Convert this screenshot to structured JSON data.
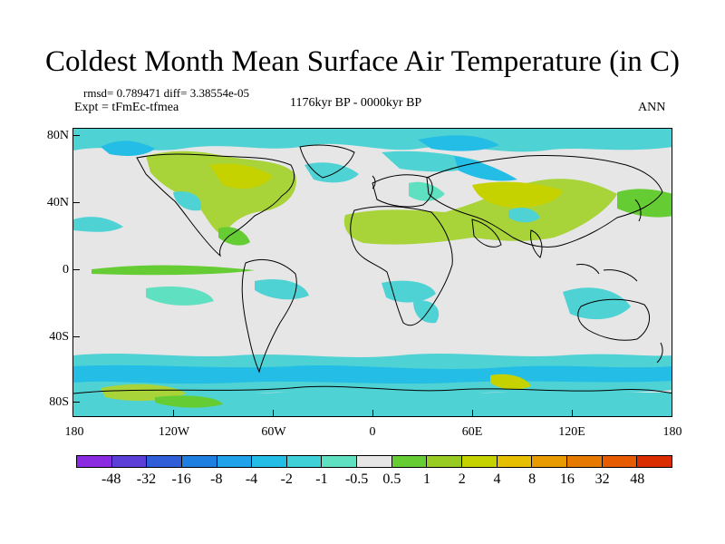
{
  "title": "Coldest Month Mean Surface Air Temperature (in C)",
  "stats": "rmsd= 0.789471 diff= 3.38554e-05",
  "expt": "Expt = tFmEc-tfmea",
  "period": "1176kyr BP - 0000kyr BP",
  "season": "ANN",
  "lat_labels": [
    "80N",
    "40N",
    "0",
    "40S",
    "80S"
  ],
  "lon_labels": [
    "180",
    "120W",
    "60W",
    "0",
    "60E",
    "120E",
    "180"
  ],
  "colorbar": {
    "labels": [
      "-48",
      "-32",
      "-16",
      "-8",
      "-4",
      "-2",
      "-1",
      "-0.5",
      "0.5",
      "1",
      "2",
      "4",
      "8",
      "16",
      "32",
      "48"
    ],
    "colors": [
      "#8a2be2",
      "#5b3fd6",
      "#2f5ed8",
      "#1f7fe0",
      "#1fa2ea",
      "#23bde6",
      "#3fd0d8",
      "#5fe0c0",
      "#e6e6e6",
      "#66cc33",
      "#99cc22",
      "#c6d100",
      "#e6c000",
      "#e79b00",
      "#e67a00",
      "#e65a00",
      "#d92d00"
    ]
  },
  "colors": {
    "background_field": "#e6e6e6",
    "coast": "#000000"
  }
}
